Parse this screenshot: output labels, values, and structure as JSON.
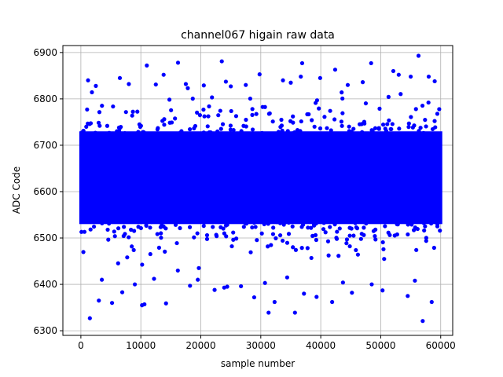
{
  "chart_data": {
    "type": "scatter",
    "title": "channel067 higain raw data",
    "xlabel": "sample number",
    "ylabel": "ADC Code",
    "xlim": [
      -3000,
      62000
    ],
    "ylim": [
      6290,
      6915
    ],
    "xticks": [
      0,
      10000,
      20000,
      30000,
      40000,
      50000,
      60000
    ],
    "yticks": [
      6300,
      6400,
      6500,
      6600,
      6700,
      6800,
      6900
    ],
    "grid": true,
    "color": "#0000ff",
    "series": [
      {
        "name": "",
        "description_values": {
          "x_range": [
            0,
            59999
          ],
          "dense_band": [
            6530,
            6730
          ],
          "center": 6630
        },
        "points": [
          [
            1500,
            6327
          ],
          [
            3000,
            6365
          ],
          [
            5200,
            6360
          ],
          [
            6900,
            6383
          ],
          [
            10200,
            6355
          ],
          [
            10600,
            6357
          ],
          [
            11000,
            6872
          ],
          [
            14200,
            6359
          ],
          [
            16200,
            6878
          ],
          [
            18200,
            6397
          ],
          [
            22300,
            6388
          ],
          [
            23500,
            6881
          ],
          [
            23900,
            6393
          ],
          [
            24400,
            6395
          ],
          [
            28900,
            6372
          ],
          [
            29800,
            6853
          ],
          [
            31300,
            6339
          ],
          [
            32300,
            6362
          ],
          [
            33700,
            6840
          ],
          [
            35700,
            6339
          ],
          [
            36900,
            6877
          ],
          [
            37200,
            6380
          ],
          [
            39300,
            6373
          ],
          [
            39900,
            6845
          ],
          [
            41900,
            6362
          ],
          [
            42400,
            6863
          ],
          [
            45200,
            6382
          ],
          [
            48400,
            6877
          ],
          [
            50300,
            6387
          ],
          [
            52100,
            6860
          ],
          [
            54500,
            6375
          ],
          [
            56300,
            6893
          ],
          [
            57000,
            6321
          ],
          [
            58000,
            6848
          ],
          [
            58500,
            6362
          ],
          [
            59000,
            6838
          ],
          [
            1200,
            6840
          ],
          [
            2500,
            6828
          ],
          [
            6500,
            6845
          ],
          [
            8000,
            6832
          ],
          [
            12500,
            6831
          ],
          [
            13800,
            6852
          ],
          [
            17500,
            6832
          ],
          [
            20500,
            6829
          ],
          [
            25000,
            6827
          ],
          [
            27500,
            6830
          ],
          [
            35000,
            6835
          ],
          [
            44500,
            6830
          ],
          [
            47000,
            6836
          ],
          [
            53000,
            6852
          ],
          [
            55000,
            6848
          ],
          [
            3500,
            6410
          ],
          [
            9000,
            6400
          ],
          [
            12200,
            6412
          ],
          [
            19500,
            6410
          ],
          [
            26700,
            6396
          ],
          [
            30700,
            6403
          ],
          [
            34400,
            6415
          ],
          [
            43700,
            6404
          ],
          [
            48500,
            6400
          ],
          [
            55700,
            6408
          ]
        ]
      }
    ]
  }
}
